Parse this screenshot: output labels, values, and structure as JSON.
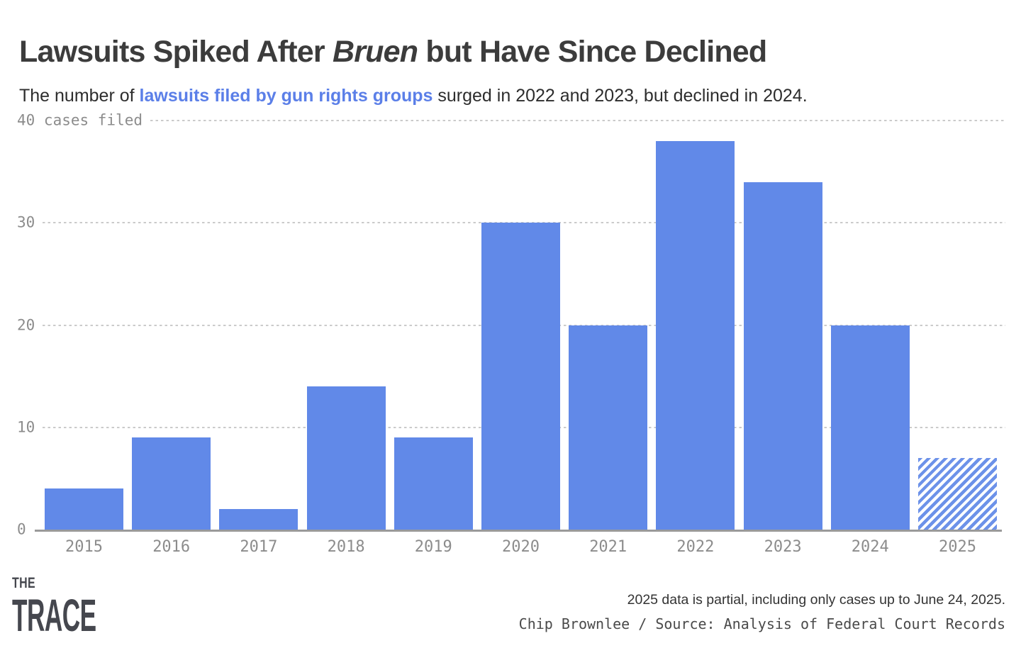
{
  "header": {
    "title_pre": "Lawsuits Spiked After ",
    "title_italic": "Bruen",
    "title_post": " but Have Since Declined",
    "subtitle_pre": "The number of ",
    "subtitle_highlight": "lawsuits filed by gun rights groups",
    "subtitle_post": " surged in 2022 and 2023, but declined in 2024."
  },
  "chart_data": {
    "type": "bar",
    "title": "Lawsuits Spiked After Bruen but Have Since Declined",
    "subtitle": "The number of lawsuits filed by gun rights groups surged in 2022 and 2023, but declined in 2024.",
    "categories": [
      "2015",
      "2016",
      "2017",
      "2018",
      "2019",
      "2020",
      "2021",
      "2022",
      "2023",
      "2024",
      "2025"
    ],
    "values": [
      4,
      9,
      2,
      14,
      9,
      30,
      20,
      38,
      34,
      20,
      7
    ],
    "partial_bars": [
      "2025"
    ],
    "xlabel": "",
    "ylabel": "cases filed",
    "ylim": [
      0,
      40
    ],
    "y_ticks": [
      {
        "value": 0,
        "label": "0"
      },
      {
        "value": 10,
        "label": "10"
      },
      {
        "value": 20,
        "label": "20"
      },
      {
        "value": 30,
        "label": "30"
      },
      {
        "value": 40,
        "label": "40 cases filed"
      }
    ],
    "grid": "horizontal-dashed",
    "legend": "none",
    "bar_color": "#6189e8",
    "partial_bar_style": "diagonal-hatch",
    "annotation": "2025 data is partial, including only cases up to June 24, 2025."
  },
  "footer": {
    "logo_line1": "THE",
    "logo_line2": "TRACE",
    "note": "2025 data is partial, including only cases up to June 24, 2025.",
    "credit": "Chip Brownlee / Source: Analysis of Federal Court Records"
  },
  "colors": {
    "bar": "#6189e8",
    "subtitle_highlight": "#5b7fe8",
    "title_text": "#3c3c3c",
    "tick_text": "#8c8c8c",
    "gridline": "#cbcbcb",
    "axis_line": "#9a9a9a",
    "logo": "#45474e"
  }
}
